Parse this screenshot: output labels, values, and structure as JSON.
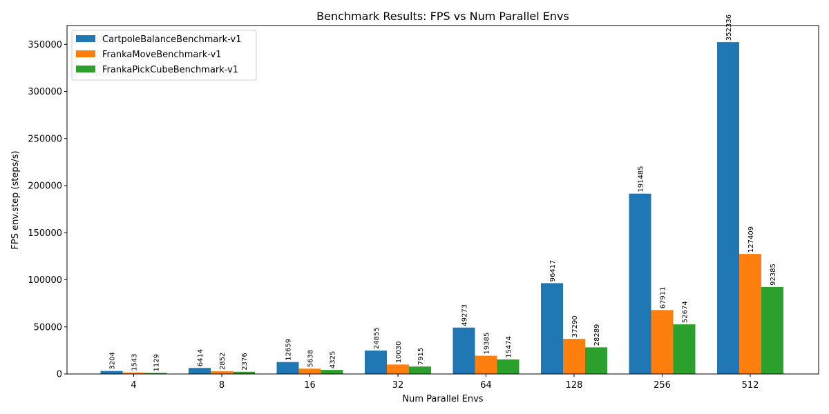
{
  "chart_data": {
    "type": "bar",
    "title": "Benchmark Results: FPS vs Num Parallel Envs",
    "xlabel": "Num Parallel Envs",
    "ylabel": "FPS env.step (steps/s)",
    "categories": [
      "4",
      "8",
      "16",
      "32",
      "64",
      "128",
      "256",
      "512"
    ],
    "series": [
      {
        "name": "CartpoleBalanceBenchmark-v1",
        "color": "#1f77b4",
        "values": [
          3204,
          6414,
          12659,
          24855,
          49273,
          96417,
          191485,
          352336
        ],
        "labels": [
          "3204",
          "6414",
          "12659",
          "24855",
          "49273",
          "96417",
          "191485",
          "352336"
        ]
      },
      {
        "name": "FrankaMoveBenchmark-v1",
        "color": "#ff7f0e",
        "values": [
          1543,
          2852,
          5638,
          10030,
          19385,
          37290,
          67911,
          127409
        ],
        "labels": [
          "1543",
          "2852",
          "5638",
          "10030",
          "19385",
          "37290",
          "67911",
          "127409"
        ]
      },
      {
        "name": "FrankaPickCubeBenchmark-v1",
        "color": "#2ca02c",
        "values": [
          1129,
          2376,
          4325,
          7915,
          15474,
          28289,
          52674,
          92385
        ],
        "labels": [
          "1129",
          "2376",
          "4325",
          "7915",
          "15474",
          "28289",
          "52674",
          "92385"
        ]
      }
    ],
    "ylim": [
      0,
      370000
    ],
    "yticks": [
      0,
      50000,
      100000,
      150000,
      200000,
      250000,
      300000,
      350000
    ],
    "ytick_labels": [
      "0",
      "50000",
      "100000",
      "150000",
      "200000",
      "250000",
      "300000",
      "350000"
    ],
    "legend_position": "top-left",
    "grid": false
  }
}
